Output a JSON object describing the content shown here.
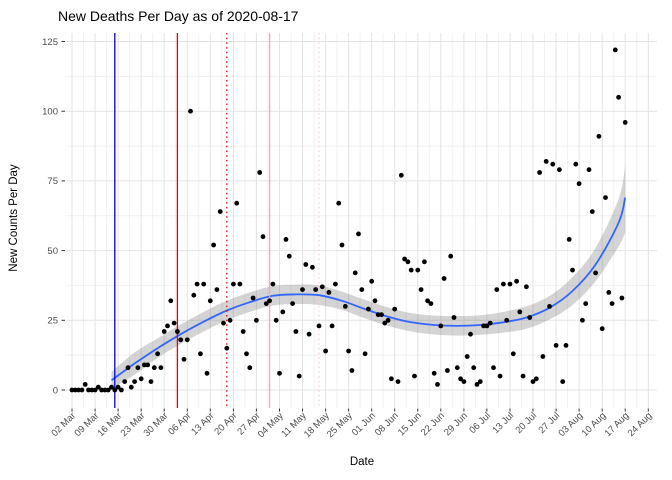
{
  "title": "New Deaths Per Day as of 2020-08-17",
  "x_axis_label": "Date",
  "y_axis_label": "New Counts Per Day",
  "colors": {
    "point": "#000000",
    "smooth_line": "#3366ff",
    "confidence_band": "rgba(100,100,100,0.28)",
    "grid_major": "#e3e3e3",
    "grid_minor": "#f1f1f1",
    "tick_label": "#4d4d4d",
    "axis_tick": "#333333",
    "vline_blue": "#0000e0",
    "vline_red": "#ee0000",
    "vline_pink": "#f2aab6",
    "vline_pink_light": "#f7cfd6"
  },
  "chart_data": {
    "type": "scatter",
    "title": "New Deaths Per Day as of 2020-08-17",
    "xlabel": "Date",
    "ylabel": "New Counts Per Day",
    "ylim": [
      0,
      125
    ],
    "y_ticks": [
      0,
      25,
      50,
      75,
      100,
      125
    ],
    "x_tick_labels": [
      "02 Mar",
      "09 Mar",
      "16 Mar",
      "23 Mar",
      "30 Mar",
      "06 Apr",
      "13 Apr",
      "20 Apr",
      "27 Apr",
      "04 May",
      "11 May",
      "18 May",
      "25 May",
      "01 Jun",
      "08 Jun",
      "15 Jun",
      "22 Jun",
      "29 Jun",
      "06 Jul",
      "13 Jul",
      "20 Jul",
      "27 Jul",
      "03 Aug",
      "10 Aug",
      "17 Aug",
      "24 Aug"
    ],
    "grid": "major+minor",
    "legend": "none",
    "points_start_date": "2020-03-02",
    "points_daily_values": [
      0,
      0,
      0,
      0,
      2,
      0,
      0,
      0,
      1,
      0,
      0,
      0,
      1,
      0,
      1,
      0,
      3,
      8,
      1,
      3,
      8,
      4,
      9,
      9,
      3,
      8,
      13,
      8,
      21,
      23,
      32,
      24,
      21,
      18,
      11,
      18,
      100,
      34,
      38,
      13,
      38,
      6,
      32,
      52,
      36,
      64,
      24,
      15,
      25,
      38,
      67,
      38,
      21,
      13,
      8,
      33,
      25,
      78,
      55,
      31,
      32,
      38,
      25,
      6,
      28,
      54,
      48,
      31,
      21,
      5,
      36,
      45,
      20,
      44,
      36,
      23,
      37,
      14,
      35,
      23,
      38,
      67,
      52,
      30,
      14,
      7,
      42,
      56,
      36,
      13,
      29,
      39,
      32,
      27,
      27,
      24,
      25,
      4,
      29,
      3,
      77,
      47,
      46,
      43,
      5,
      43,
      36,
      46,
      32,
      31,
      6,
      2,
      23,
      40,
      7,
      48,
      26,
      8,
      4,
      3,
      12,
      20,
      8,
      2,
      3,
      23,
      23,
      24,
      8,
      36,
      5,
      38,
      25,
      38,
      13,
      39,
      28,
      5,
      37,
      26,
      3,
      4,
      78,
      12,
      82,
      30,
      81,
      16,
      79,
      3,
      16,
      54,
      43,
      81,
      74,
      25,
      31,
      79,
      64,
      42,
      91,
      22,
      69,
      35,
      31,
      122,
      105,
      33,
      96
    ],
    "smooth_trend": {
      "comment_days_since_2020_03_02": true,
      "line": [
        [
          12,
          3.5
        ],
        [
          19,
          9.5
        ],
        [
          26,
          15
        ],
        [
          33,
          20
        ],
        [
          40,
          24.5
        ],
        [
          47,
          28.5
        ],
        [
          54,
          31.5
        ],
        [
          61,
          33.8
        ],
        [
          68,
          34.3
        ],
        [
          75,
          34
        ],
        [
          82,
          32
        ],
        [
          89,
          29
        ],
        [
          96,
          26.3
        ],
        [
          103,
          24.3
        ],
        [
          110,
          23.3
        ],
        [
          117,
          23
        ],
        [
          124,
          23.3
        ],
        [
          131,
          24.3
        ],
        [
          138,
          26
        ],
        [
          145,
          29.5
        ],
        [
          152,
          35.5
        ],
        [
          159,
          45
        ],
        [
          166,
          60
        ],
        [
          168,
          69
        ]
      ],
      "band": [
        [
          12,
          0.5,
          6.5
        ],
        [
          19,
          5.5,
          13.5
        ],
        [
          26,
          11.5,
          18.5
        ],
        [
          33,
          16.5,
          23.5
        ],
        [
          40,
          21,
          28
        ],
        [
          47,
          25,
          32
        ],
        [
          54,
          28,
          35
        ],
        [
          61,
          30.3,
          37.3
        ],
        [
          68,
          30.8,
          37.8
        ],
        [
          75,
          30.5,
          37.5
        ],
        [
          82,
          28.7,
          35.3
        ],
        [
          89,
          25.7,
          32.3
        ],
        [
          96,
          23,
          29.6
        ],
        [
          103,
          21,
          27.6
        ],
        [
          110,
          19.9,
          26.7
        ],
        [
          117,
          19.5,
          26.5
        ],
        [
          124,
          19.8,
          26.8
        ],
        [
          131,
          20.6,
          28
        ],
        [
          138,
          22,
          30
        ],
        [
          145,
          25.3,
          33.7
        ],
        [
          152,
          30.5,
          40.5
        ],
        [
          159,
          39,
          51
        ],
        [
          166,
          51.5,
          68.5
        ],
        [
          168,
          56.5,
          80.5
        ]
      ]
    },
    "vlines": [
      {
        "date": "2020-03-15",
        "style": "solid",
        "color_key": "vline_blue"
      },
      {
        "date": "2020-04-03",
        "style": "solid",
        "color_key": "vline_red"
      },
      {
        "date": "2020-04-18",
        "style": "dotted",
        "color_key": "vline_red"
      },
      {
        "date": "2020-05-01",
        "style": "solid",
        "color_key": "vline_pink"
      },
      {
        "date": "2020-05-16",
        "style": "dotted",
        "color_key": "vline_pink_light"
      }
    ]
  }
}
